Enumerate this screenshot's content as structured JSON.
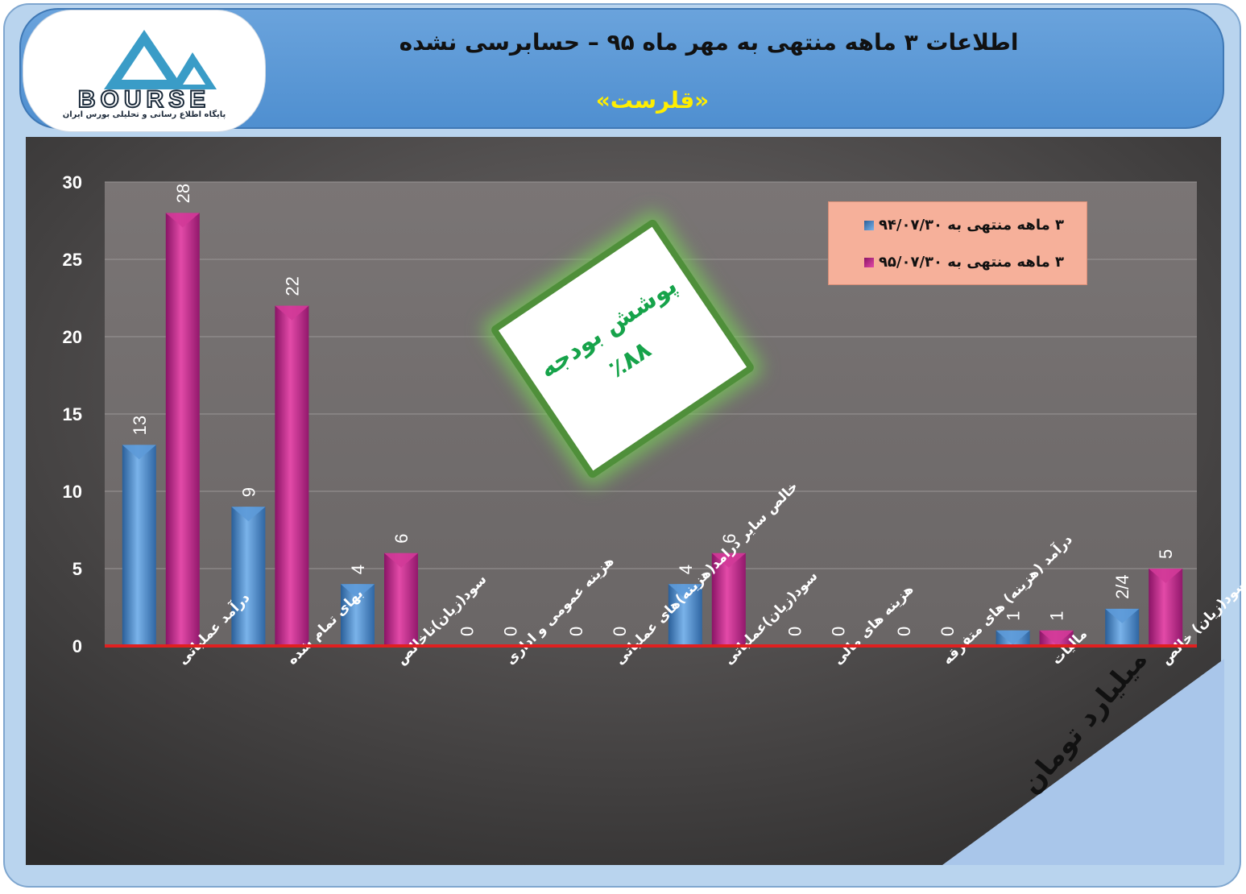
{
  "header": {
    "title": "اطلاعات ۳  ماهه منتهی به مهر ماه ۹۵ – حسابرسی نشده",
    "subtitle": "«قلرست»"
  },
  "logo": {
    "wordmark": "BOURSE",
    "tagline": "پایگاه اطلاع رسانی و تحلیلی بورس ایران"
  },
  "badge": {
    "line1": "پوشش بودجه",
    "line2": "٪۸۸"
  },
  "unit_note": "ارقام به میلیارد تومان",
  "legend": {
    "items": [
      {
        "label": "۳ ماهه منتهی به ۹۴/۰۷/۳۰",
        "color": "#4a90d9"
      },
      {
        "label": "۳ ماهه منتهی به ۹۵/۰۷/۳۰",
        "color": "#c8288c"
      }
    ]
  },
  "colors": {
    "series1": "#4a90d9",
    "series2": "#c8288c",
    "baseline": "#e02020",
    "plot_bg": "#7a7676"
  },
  "chart_data": {
    "type": "bar",
    "categories": [
      "درآمد عملیاتی",
      "بهای تمام شده",
      "سود(زیان)ناخالص",
      "هزینه عمومی و اداری",
      "خالص سایر درامد(هزینه)های عملیاتی",
      "سود(زیان)عملیاتی",
      "هزینه های مالی",
      "درآمد (هزینه) های متفرقه",
      "مالیات",
      "سود(زیان) خالص"
    ],
    "series": [
      {
        "name": "۳ ماهه منتهی به ۹۴/۰۷/۳۰",
        "values": [
          13,
          9,
          4,
          0,
          0,
          4,
          0,
          0,
          1,
          2.4
        ],
        "labels": [
          "13",
          "9",
          "4",
          "0",
          "0",
          "4",
          "0",
          "0",
          "1",
          "2/4"
        ]
      },
      {
        "name": "۳ ماهه منتهی به ۹۵/۰۷/۳۰",
        "values": [
          28,
          22,
          6,
          0,
          0,
          6,
          0,
          0,
          1,
          5
        ],
        "labels": [
          "28",
          "22",
          "6",
          "0",
          "0",
          "6",
          "0",
          "0",
          "1",
          "5"
        ]
      }
    ],
    "yticks": [
      "0",
      "5",
      "10",
      "15",
      "20",
      "25",
      "30"
    ],
    "ylim": [
      0,
      30
    ],
    "grid": true,
    "legend_position": "top-right"
  }
}
